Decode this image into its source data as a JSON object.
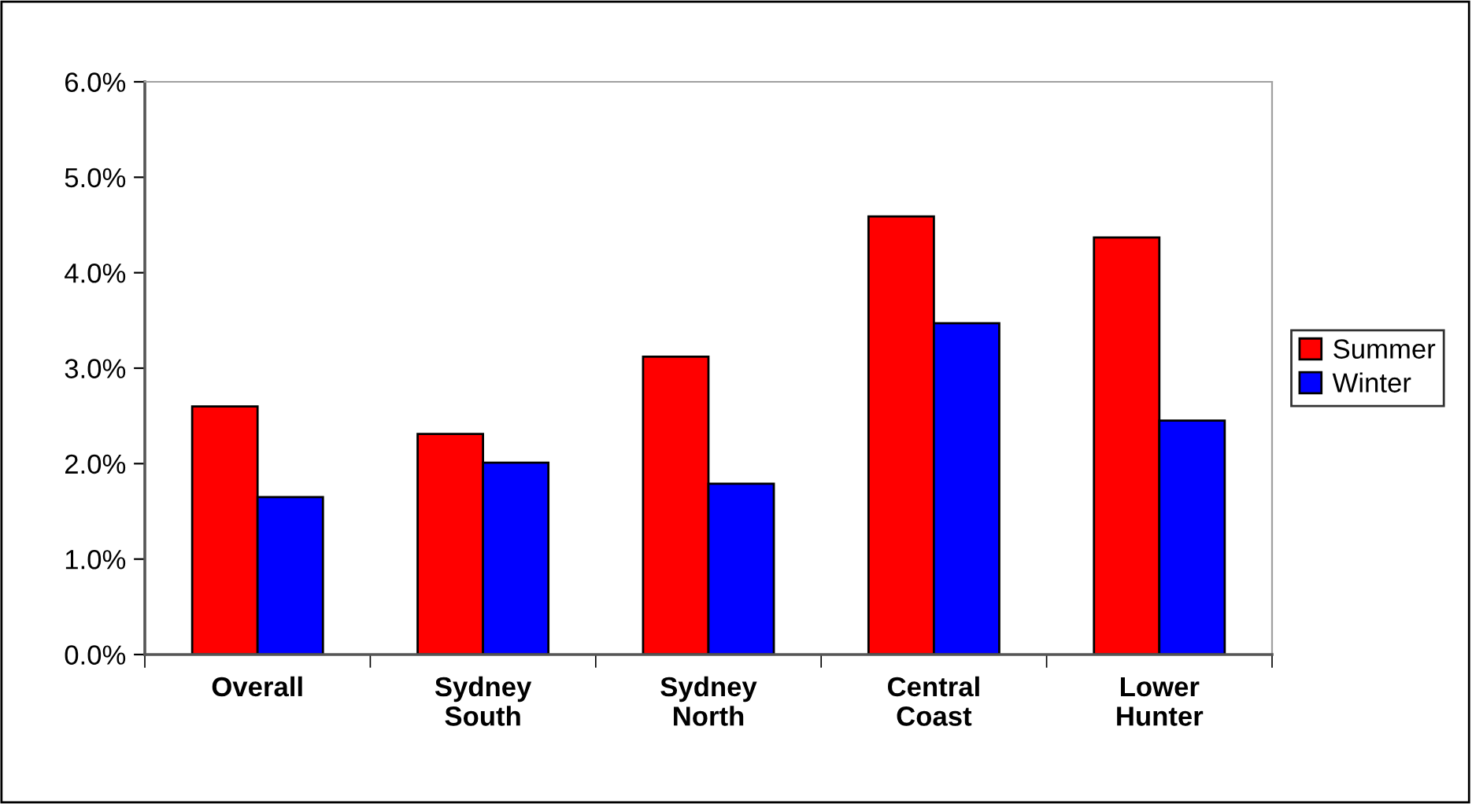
{
  "chart_data": {
    "type": "bar",
    "categories": [
      "Overall",
      "Sydney\nSouth",
      "Sydney\nNorth",
      "Central\nCoast",
      "Lower\nHunter"
    ],
    "series": [
      {
        "name": "Summer",
        "color": "#ff0000",
        "values": [
          2.6,
          2.31,
          3.12,
          4.59,
          4.37
        ]
      },
      {
        "name": "Winter",
        "color": "#0000ff",
        "values": [
          1.65,
          2.01,
          1.79,
          3.47,
          2.45
        ]
      }
    ],
    "ylim": [
      0,
      6
    ],
    "yticks": [
      {
        "value": 0,
        "label": "0.0%"
      },
      {
        "value": 1,
        "label": "1.0%"
      },
      {
        "value": 2,
        "label": "2.0%"
      },
      {
        "value": 3,
        "label": "3.0%"
      },
      {
        "value": 4,
        "label": "4.0%"
      },
      {
        "value": 5,
        "label": "5.0%"
      },
      {
        "value": 6,
        "label": "6.0%"
      }
    ],
    "grid": false,
    "legend": "right"
  }
}
